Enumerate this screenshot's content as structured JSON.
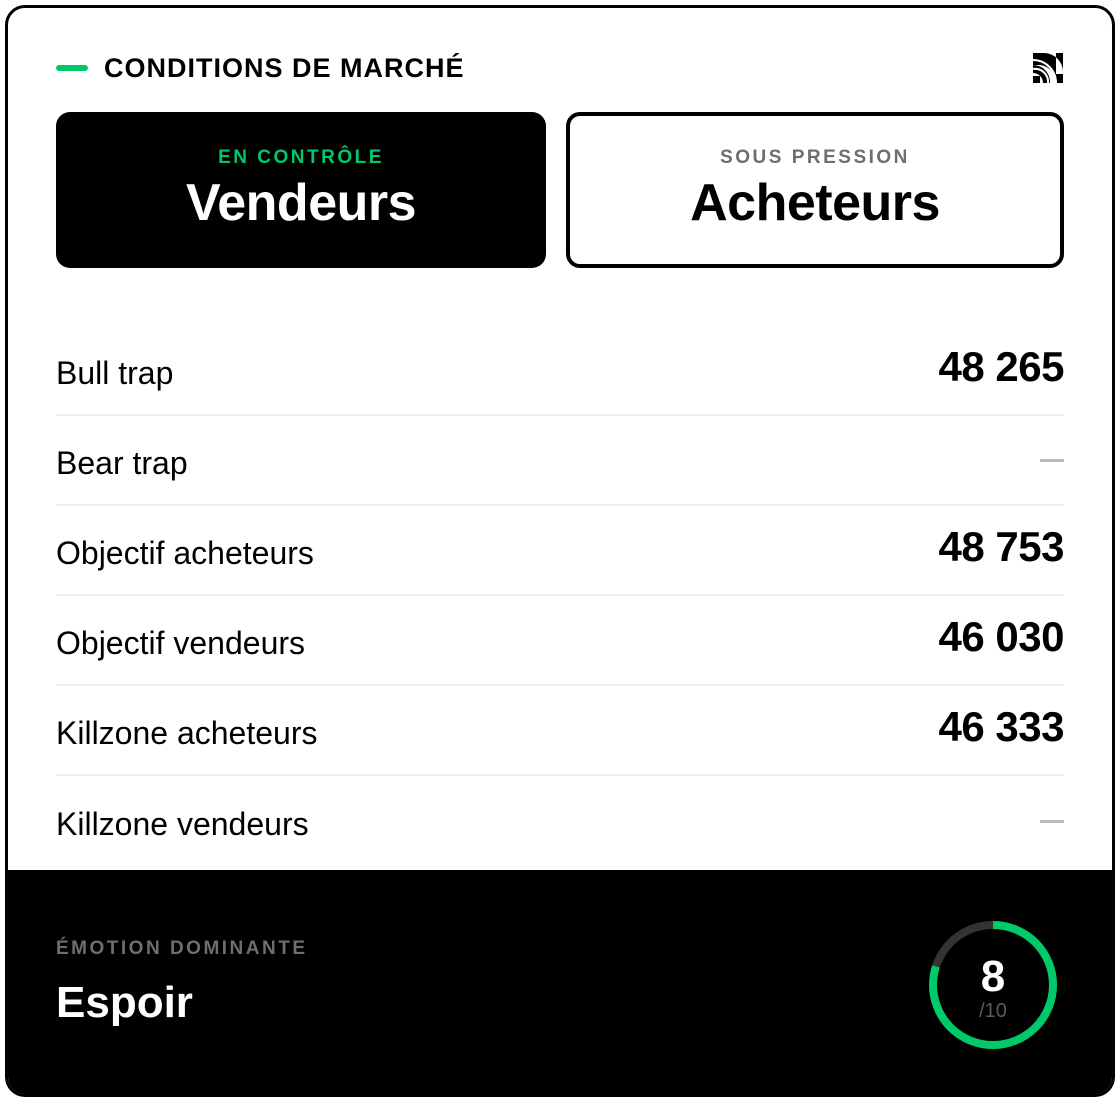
{
  "header": {
    "title": "CONDITIONS DE MARCHÉ",
    "accent": "#00c96b",
    "icon": "logo-icon"
  },
  "control": {
    "label": "EN CONTRÔLE",
    "value": "Vendeurs",
    "label_color": "#00c96b"
  },
  "pressure": {
    "label": "SOUS PRESSION",
    "value": "Acheteurs"
  },
  "rows": [
    {
      "label": "Bull trap",
      "value": "48 265"
    },
    {
      "label": "Bear trap",
      "value": null
    },
    {
      "label": "Objectif acheteurs",
      "value": "48 753"
    },
    {
      "label": "Objectif vendeurs",
      "value": "46 030"
    },
    {
      "label": "Killzone acheteurs",
      "value": "46 333"
    },
    {
      "label": "Killzone vendeurs",
      "value": null
    }
  ],
  "emotion": {
    "label": "ÉMOTION DOMINANTE",
    "value": "Espoir",
    "score": "8",
    "max": "/10",
    "score_value": 8,
    "score_max": 10,
    "gauge_color": "#00c96b",
    "track_color": "#333333"
  }
}
